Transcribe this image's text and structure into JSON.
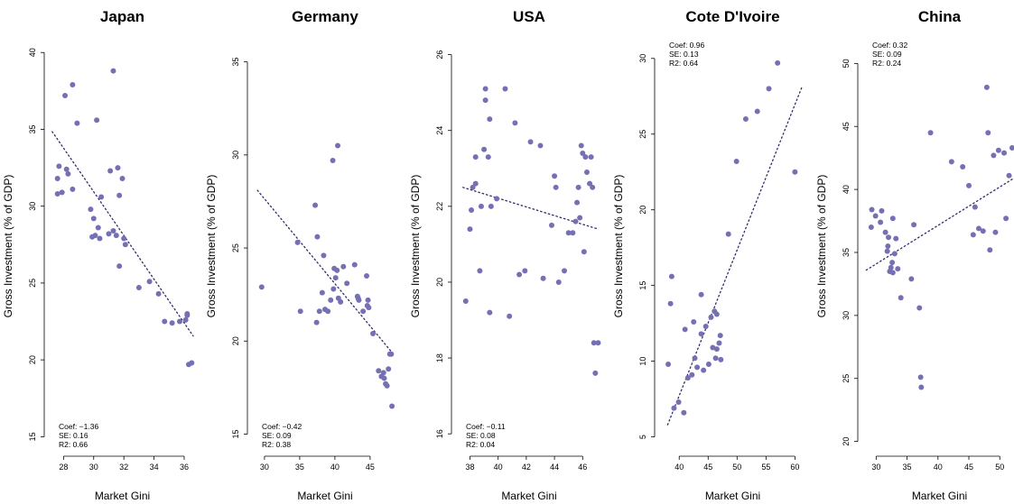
{
  "colors": {
    "point": "#7570b3",
    "fit_line": "#2f2a6b",
    "axis": "#000000"
  },
  "chart_data": [
    {
      "type": "scatter",
      "title": "Japan",
      "xlabel": "Market Gini",
      "ylabel": "Gross Investment (% of GDP)",
      "xlim": [
        27.2,
        36.6
      ],
      "ylim": [
        14.2,
        40.6
      ],
      "xticks": [
        28,
        30,
        32,
        34,
        36
      ],
      "yticks": [
        15,
        20,
        25,
        30,
        35,
        40
      ],
      "stats": {
        "coef": "Coef: −1.36",
        "se": "SE: 0.16",
        "r2": "R2: 0.66"
      },
      "stats_position": "bottom-left",
      "fit_line": [
        [
          27.25,
          34.85
        ],
        [
          36.6,
          21.55
        ]
      ],
      "points": [
        [
          27.6,
          30.8
        ],
        [
          27.6,
          31.8
        ],
        [
          27.7,
          32.6
        ],
        [
          27.9,
          30.9
        ],
        [
          28.1,
          37.2
        ],
        [
          28.2,
          32.4
        ],
        [
          28.3,
          32.1
        ],
        [
          28.6,
          31.1
        ],
        [
          28.6,
          37.9
        ],
        [
          28.9,
          35.4
        ],
        [
          29.8,
          29.8
        ],
        [
          29.9,
          28.0
        ],
        [
          30.0,
          29.2
        ],
        [
          30.1,
          28.1
        ],
        [
          30.2,
          35.6
        ],
        [
          30.3,
          28.6
        ],
        [
          30.4,
          27.9
        ],
        [
          30.5,
          30.6
        ],
        [
          31.0,
          28.2
        ],
        [
          31.1,
          32.3
        ],
        [
          31.3,
          28.4
        ],
        [
          31.3,
          38.8
        ],
        [
          31.5,
          28.1
        ],
        [
          31.6,
          32.5
        ],
        [
          31.7,
          30.7
        ],
        [
          31.7,
          26.1
        ],
        [
          31.9,
          31.8
        ],
        [
          32.0,
          27.9
        ],
        [
          32.1,
          27.5
        ],
        [
          33.0,
          24.7
        ],
        [
          33.7,
          25.1
        ],
        [
          34.3,
          24.3
        ],
        [
          34.7,
          22.5
        ],
        [
          35.2,
          22.4
        ],
        [
          35.7,
          22.5
        ],
        [
          36.1,
          22.6
        ],
        [
          36.2,
          22.9
        ],
        [
          36.2,
          23.0
        ],
        [
          36.3,
          19.7
        ],
        [
          36.5,
          19.8
        ]
      ]
    },
    {
      "type": "scatter",
      "title": "Germany",
      "xlabel": "Market Gini",
      "ylabel": "Gross Investment (% of GDP)",
      "xlim": [
        28.6,
        48.6
      ],
      "ylim": [
        14.2,
        36.0
      ],
      "xticks": [
        30,
        35,
        40,
        45
      ],
      "yticks": [
        15,
        20,
        25,
        30,
        35
      ],
      "stats": {
        "coef": "Coef: −0.42",
        "se": "SE: 0.09",
        "r2": "R2: 0.38"
      },
      "stats_position": "bottom-left",
      "fit_line": [
        [
          29.0,
          28.1
        ],
        [
          48.3,
          19.3
        ]
      ],
      "points": [
        [
          29.6,
          22.9
        ],
        [
          34.7,
          25.3
        ],
        [
          35.1,
          21.6
        ],
        [
          37.2,
          27.3
        ],
        [
          37.4,
          21.0
        ],
        [
          37.5,
          25.6
        ],
        [
          37.8,
          21.6
        ],
        [
          38.2,
          22.6
        ],
        [
          38.4,
          24.6
        ],
        [
          38.6,
          21.7
        ],
        [
          39.0,
          21.6
        ],
        [
          39.4,
          22.2
        ],
        [
          39.7,
          29.7
        ],
        [
          39.8,
          22.8
        ],
        [
          39.9,
          23.9
        ],
        [
          40.1,
          23.4
        ],
        [
          40.3,
          23.8
        ],
        [
          40.4,
          30.5
        ],
        [
          40.5,
          22.3
        ],
        [
          40.8,
          22.1
        ],
        [
          41.2,
          24.0
        ],
        [
          41.7,
          23.1
        ],
        [
          42.8,
          24.1
        ],
        [
          43.2,
          22.4
        ],
        [
          43.3,
          22.3
        ],
        [
          43.4,
          22.2
        ],
        [
          44.0,
          21.6
        ],
        [
          44.5,
          23.5
        ],
        [
          44.6,
          21.9
        ],
        [
          44.7,
          22.2
        ],
        [
          44.8,
          21.8
        ],
        [
          45.4,
          20.4
        ],
        [
          46.2,
          18.4
        ],
        [
          46.6,
          18.1
        ],
        [
          46.9,
          18.3
        ],
        [
          47.0,
          18.0
        ],
        [
          47.2,
          17.7
        ],
        [
          47.4,
          17.6
        ],
        [
          47.6,
          18.5
        ],
        [
          47.8,
          19.3
        ],
        [
          48.0,
          19.3
        ],
        [
          48.1,
          16.5
        ]
      ]
    },
    {
      "type": "scatter",
      "title": "USA",
      "xlabel": "Market Gini",
      "ylabel": "Gross Investment (% of GDP)",
      "xlim": [
        37.2,
        47.2
      ],
      "ylim": [
        15.6,
        26.3
      ],
      "xticks": [
        38,
        40,
        42,
        44,
        46
      ],
      "yticks": [
        16,
        18,
        20,
        22,
        24,
        26
      ],
      "stats": {
        "coef": "Coef: −0.11",
        "se": "SE: 0.08",
        "r2": "R2: 0.04"
      },
      "stats_position": "bottom-left",
      "fit_line": [
        [
          37.5,
          22.5
        ],
        [
          47.1,
          21.4
        ]
      ],
      "points": [
        [
          37.7,
          19.5
        ],
        [
          38.0,
          21.4
        ],
        [
          38.1,
          21.9
        ],
        [
          38.2,
          22.5
        ],
        [
          38.4,
          22.6
        ],
        [
          38.4,
          23.3
        ],
        [
          38.7,
          20.3
        ],
        [
          38.8,
          22.0
        ],
        [
          39.0,
          23.5
        ],
        [
          39.1,
          24.8
        ],
        [
          39.1,
          25.1
        ],
        [
          39.3,
          23.3
        ],
        [
          39.4,
          24.3
        ],
        [
          39.4,
          19.2
        ],
        [
          39.5,
          22.0
        ],
        [
          39.9,
          22.2
        ],
        [
          40.5,
          25.1
        ],
        [
          40.8,
          19.1
        ],
        [
          41.2,
          24.2
        ],
        [
          41.5,
          20.2
        ],
        [
          41.9,
          20.3
        ],
        [
          42.3,
          23.7
        ],
        [
          43.0,
          23.6
        ],
        [
          43.2,
          20.1
        ],
        [
          43.8,
          21.5
        ],
        [
          44.0,
          22.8
        ],
        [
          44.1,
          22.5
        ],
        [
          44.3,
          20.0
        ],
        [
          44.7,
          20.3
        ],
        [
          45.0,
          21.3
        ],
        [
          45.3,
          21.3
        ],
        [
          45.5,
          21.6
        ],
        [
          45.6,
          22.1
        ],
        [
          45.7,
          22.5
        ],
        [
          45.8,
          21.7
        ],
        [
          45.9,
          23.6
        ],
        [
          46.0,
          23.4
        ],
        [
          46.1,
          20.8
        ],
        [
          46.2,
          23.3
        ],
        [
          46.3,
          22.9
        ],
        [
          46.5,
          22.6
        ],
        [
          46.6,
          23.3
        ],
        [
          46.7,
          22.5
        ],
        [
          46.8,
          18.4
        ],
        [
          46.9,
          17.6
        ],
        [
          47.1,
          18.4
        ]
      ]
    },
    {
      "type": "scatter",
      "title": "Cote D'Ivoire",
      "xlabel": "Market Gini",
      "ylabel": "Gross Investment (% of GDP)",
      "xlim": [
        37.0,
        61.5
      ],
      "ylim": [
        4.2,
        31.0
      ],
      "xticks": [
        40,
        45,
        50,
        55,
        60
      ],
      "yticks": [
        5,
        10,
        15,
        20,
        25,
        30
      ],
      "stats": {
        "coef": "Coef: 0.96",
        "se": "SE: 0.13",
        "r2": "R2: 0.64"
      },
      "stats_position": "top-left",
      "fit_line": [
        [
          38.0,
          5.8
        ],
        [
          61.3,
          28.2
        ]
      ],
      "points": [
        [
          38.1,
          9.8
        ],
        [
          38.5,
          13.8
        ],
        [
          38.7,
          15.6
        ],
        [
          39.1,
          6.9
        ],
        [
          39.9,
          7.3
        ],
        [
          40.8,
          6.6
        ],
        [
          41.0,
          12.1
        ],
        [
          41.5,
          8.9
        ],
        [
          42.2,
          9.1
        ],
        [
          42.5,
          12.6
        ],
        [
          42.7,
          10.2
        ],
        [
          43.1,
          9.6
        ],
        [
          43.8,
          11.8
        ],
        [
          43.8,
          14.4
        ],
        [
          44.2,
          9.4
        ],
        [
          44.6,
          12.3
        ],
        [
          45.1,
          9.8
        ],
        [
          45.5,
          12.9
        ],
        [
          45.8,
          10.9
        ],
        [
          46.1,
          13.3
        ],
        [
          46.3,
          10.2
        ],
        [
          46.5,
          13.1
        ],
        [
          46.5,
          10.8
        ],
        [
          46.9,
          11.2
        ],
        [
          47.1,
          11.7
        ],
        [
          47.2,
          10.1
        ],
        [
          48.5,
          18.4
        ],
        [
          49.9,
          23.2
        ],
        [
          51.5,
          26.0
        ],
        [
          53.5,
          26.5
        ],
        [
          55.5,
          28.0
        ],
        [
          57.0,
          29.7
        ],
        [
          60.0,
          22.5
        ]
      ]
    },
    {
      "type": "scatter",
      "title": "China",
      "xlabel": "Market Gini",
      "ylabel": "Gross Investment (% of GDP)",
      "xlim": [
        28.2,
        52.3
      ],
      "ylim": [
        19.4,
        51.6
      ],
      "xticks": [
        30,
        35,
        40,
        45,
        50
      ],
      "yticks": [
        20,
        25,
        30,
        35,
        40,
        45,
        50
      ],
      "stats": {
        "coef": "Coef: 0.32",
        "se": "SE: 0.09",
        "r2": "R2: 0.24"
      },
      "stats_position": "top-left",
      "fit_line": [
        [
          28.4,
          33.6
        ],
        [
          52.3,
          40.9
        ]
      ],
      "points": [
        [
          29.2,
          37.0
        ],
        [
          29.3,
          38.4
        ],
        [
          29.9,
          37.9
        ],
        [
          30.7,
          37.4
        ],
        [
          30.9,
          38.3
        ],
        [
          31.5,
          36.6
        ],
        [
          31.8,
          35.1
        ],
        [
          31.9,
          35.5
        ],
        [
          32.0,
          36.2
        ],
        [
          32.2,
          33.5
        ],
        [
          32.4,
          33.8
        ],
        [
          32.6,
          34.2
        ],
        [
          32.7,
          33.4
        ],
        [
          32.7,
          37.7
        ],
        [
          33.0,
          34.9
        ],
        [
          33.2,
          36.1
        ],
        [
          33.5,
          33.7
        ],
        [
          34.0,
          31.4
        ],
        [
          35.7,
          32.9
        ],
        [
          36.1,
          37.2
        ],
        [
          37.0,
          30.6
        ],
        [
          37.2,
          25.1
        ],
        [
          37.3,
          24.3
        ],
        [
          38.8,
          44.5
        ],
        [
          42.2,
          42.2
        ],
        [
          44.0,
          41.8
        ],
        [
          45.0,
          40.3
        ],
        [
          45.7,
          36.4
        ],
        [
          46.0,
          38.6
        ],
        [
          46.6,
          36.9
        ],
        [
          47.3,
          36.7
        ],
        [
          47.9,
          48.1
        ],
        [
          48.1,
          44.5
        ],
        [
          48.4,
          35.2
        ],
        [
          49.0,
          42.7
        ],
        [
          49.3,
          36.6
        ],
        [
          49.8,
          43.1
        ],
        [
          50.7,
          42.9
        ],
        [
          51.0,
          37.7
        ],
        [
          51.5,
          41.1
        ],
        [
          52.0,
          43.3
        ]
      ]
    }
  ]
}
